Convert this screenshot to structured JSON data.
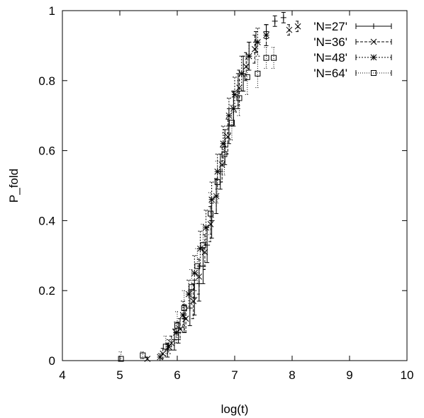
{
  "chart_data": {
    "type": "scatter",
    "title": "",
    "xlabel": "log(t)",
    "ylabel": "P_fold",
    "xlim": [
      4,
      10
    ],
    "ylim": [
      0,
      1
    ],
    "xticks": [
      "4",
      "5",
      "6",
      "7",
      "8",
      "9",
      "10"
    ],
    "yticks": [
      "0",
      "0.2",
      "0.4",
      "0.6",
      "0.8",
      "1"
    ],
    "grid": false,
    "legend_position": "top-right",
    "error_bars": true,
    "series": [
      {
        "name": "'N=27'",
        "marker": "plus",
        "points": [
          {
            "x": 5.83,
            "y": 0.03,
            "err": 0.02
          },
          {
            "x": 5.95,
            "y": 0.06,
            "err": 0.03
          },
          {
            "x": 6.02,
            "y": 0.08,
            "err": 0.03
          },
          {
            "x": 6.12,
            "y": 0.12,
            "err": 0.04
          },
          {
            "x": 6.22,
            "y": 0.15,
            "err": 0.05
          },
          {
            "x": 6.3,
            "y": 0.18,
            "err": 0.05
          },
          {
            "x": 6.38,
            "y": 0.22,
            "err": 0.05
          },
          {
            "x": 6.45,
            "y": 0.27,
            "err": 0.05
          },
          {
            "x": 6.52,
            "y": 0.33,
            "err": 0.05
          },
          {
            "x": 6.6,
            "y": 0.4,
            "err": 0.05
          },
          {
            "x": 6.68,
            "y": 0.47,
            "err": 0.05
          },
          {
            "x": 6.75,
            "y": 0.54,
            "err": 0.05
          },
          {
            "x": 6.83,
            "y": 0.61,
            "err": 0.05
          },
          {
            "x": 6.9,
            "y": 0.67,
            "err": 0.05
          },
          {
            "x": 6.98,
            "y": 0.72,
            "err": 0.05
          },
          {
            "x": 7.06,
            "y": 0.77,
            "err": 0.05
          },
          {
            "x": 7.15,
            "y": 0.82,
            "err": 0.05
          },
          {
            "x": 7.25,
            "y": 0.87,
            "err": 0.04
          },
          {
            "x": 7.37,
            "y": 0.91,
            "err": 0.03
          },
          {
            "x": 7.55,
            "y": 0.94,
            "err": 0.02
          },
          {
            "x": 7.7,
            "y": 0.97,
            "err": 0.015
          },
          {
            "x": 7.85,
            "y": 0.98,
            "err": 0.015
          }
        ]
      },
      {
        "name": "'N=36'",
        "marker": "cross",
        "points": [
          {
            "x": 5.48,
            "y": 0.005,
            "err": 0.005
          },
          {
            "x": 5.75,
            "y": 0.02,
            "err": 0.015
          },
          {
            "x": 5.9,
            "y": 0.05,
            "err": 0.02
          },
          {
            "x": 6.05,
            "y": 0.09,
            "err": 0.03
          },
          {
            "x": 6.15,
            "y": 0.12,
            "err": 0.04
          },
          {
            "x": 6.28,
            "y": 0.17,
            "err": 0.05
          },
          {
            "x": 6.38,
            "y": 0.24,
            "err": 0.05
          },
          {
            "x": 6.48,
            "y": 0.31,
            "err": 0.05
          },
          {
            "x": 6.58,
            "y": 0.39,
            "err": 0.05
          },
          {
            "x": 6.68,
            "y": 0.47,
            "err": 0.05
          },
          {
            "x": 6.78,
            "y": 0.56,
            "err": 0.05
          },
          {
            "x": 6.88,
            "y": 0.64,
            "err": 0.05
          },
          {
            "x": 6.98,
            "y": 0.72,
            "err": 0.05
          },
          {
            "x": 7.08,
            "y": 0.78,
            "err": 0.05
          },
          {
            "x": 7.2,
            "y": 0.84,
            "err": 0.04
          },
          {
            "x": 7.35,
            "y": 0.89,
            "err": 0.04
          },
          {
            "x": 7.55,
            "y": 0.93,
            "err": 0.03
          },
          {
            "x": 7.95,
            "y": 0.945,
            "err": 0.015
          },
          {
            "x": 8.1,
            "y": 0.955,
            "err": 0.015
          }
        ]
      },
      {
        "name": "'N=48'",
        "marker": "star",
        "points": [
          {
            "x": 5.7,
            "y": 0.01,
            "err": 0.01
          },
          {
            "x": 5.85,
            "y": 0.04,
            "err": 0.02
          },
          {
            "x": 5.98,
            "y": 0.08,
            "err": 0.03
          },
          {
            "x": 6.1,
            "y": 0.13,
            "err": 0.04
          },
          {
            "x": 6.2,
            "y": 0.19,
            "err": 0.04
          },
          {
            "x": 6.3,
            "y": 0.25,
            "err": 0.05
          },
          {
            "x": 6.4,
            "y": 0.32,
            "err": 0.05
          },
          {
            "x": 6.5,
            "y": 0.38,
            "err": 0.05
          },
          {
            "x": 6.6,
            "y": 0.46,
            "err": 0.05
          },
          {
            "x": 6.7,
            "y": 0.54,
            "err": 0.05
          },
          {
            "x": 6.8,
            "y": 0.62,
            "err": 0.05
          },
          {
            "x": 6.9,
            "y": 0.7,
            "err": 0.05
          },
          {
            "x": 7.0,
            "y": 0.76,
            "err": 0.05
          },
          {
            "x": 7.12,
            "y": 0.82,
            "err": 0.05
          },
          {
            "x": 7.25,
            "y": 0.87,
            "err": 0.04
          },
          {
            "x": 7.4,
            "y": 0.91,
            "err": 0.04
          },
          {
            "x": 7.55,
            "y": 0.93,
            "err": 0.03
          }
        ]
      },
      {
        "name": "'N=64'",
        "marker": "square",
        "points": [
          {
            "x": 5.02,
            "y": 0.005,
            "err": 0.02
          },
          {
            "x": 5.4,
            "y": 0.015,
            "err": 0.01
          },
          {
            "x": 5.8,
            "y": 0.04,
            "err": 0.03
          },
          {
            "x": 6.0,
            "y": 0.1,
            "err": 0.04
          },
          {
            "x": 6.12,
            "y": 0.15,
            "err": 0.05
          },
          {
            "x": 6.25,
            "y": 0.21,
            "err": 0.05
          },
          {
            "x": 6.35,
            "y": 0.27,
            "err": 0.05
          },
          {
            "x": 6.45,
            "y": 0.33,
            "err": 0.06
          },
          {
            "x": 6.58,
            "y": 0.42,
            "err": 0.06
          },
          {
            "x": 6.7,
            "y": 0.51,
            "err": 0.06
          },
          {
            "x": 6.82,
            "y": 0.59,
            "err": 0.06
          },
          {
            "x": 6.95,
            "y": 0.68,
            "err": 0.05
          },
          {
            "x": 7.08,
            "y": 0.75,
            "err": 0.05
          },
          {
            "x": 7.22,
            "y": 0.81,
            "err": 0.05
          },
          {
            "x": 7.4,
            "y": 0.82,
            "err": 0.04
          },
          {
            "x": 7.55,
            "y": 0.865,
            "err": 0.03
          },
          {
            "x": 7.68,
            "y": 0.865,
            "err": 0.03
          }
        ]
      }
    ]
  },
  "colors": {
    "background": "#ffffff",
    "ink": "#000000"
  }
}
